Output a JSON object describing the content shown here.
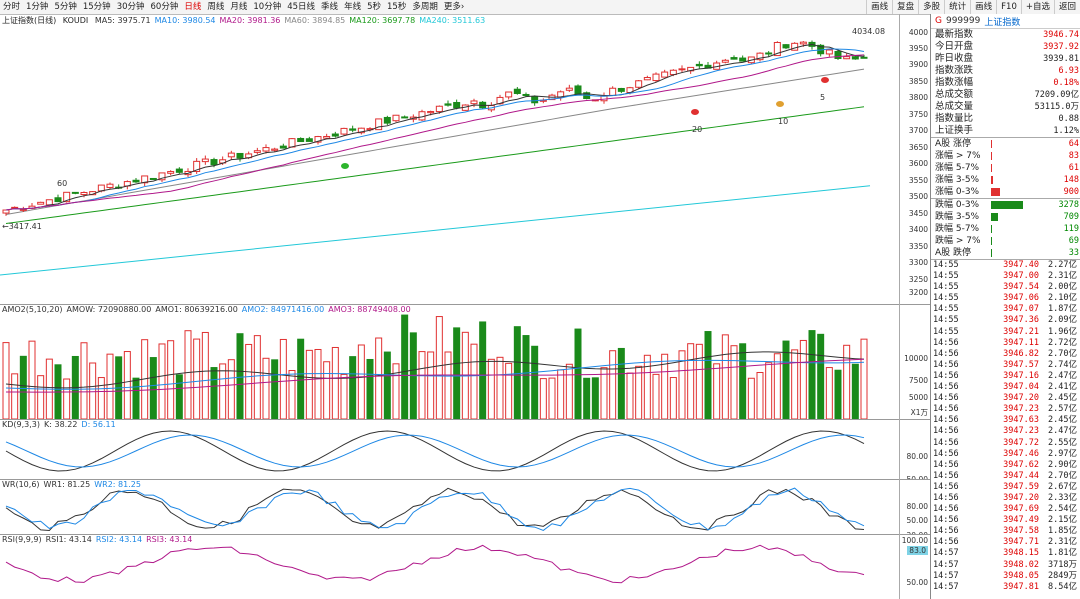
{
  "toolbar": {
    "periods": [
      "分时",
      "1分钟",
      "5分钟",
      "15分钟",
      "30分钟",
      "60分钟",
      "日线",
      "周线",
      "月线",
      "10分钟",
      "45日线",
      "季线",
      "年线",
      "5秒",
      "15秒",
      "多周期",
      "更多›"
    ],
    "active": "日线",
    "tools": [
      "画线",
      "复盘",
      "多股",
      "统计",
      "画线",
      "F10",
      "+自选",
      "返回"
    ]
  },
  "main_panel": {
    "title": "上证指数(日线)",
    "indicator": "KOUDI",
    "ma": [
      {
        "label": "MA5: 3975.71",
        "color": "#333333"
      },
      {
        "label": "MA10: 3980.54",
        "color": "#1e88e5"
      },
      {
        "label": "MA20: 3981.36",
        "color": "#b0188a"
      },
      {
        "label": "MA60: 3894.85",
        "color": "#888888"
      },
      {
        "label": "MA120: 3697.78",
        "color": "#1a9a1a"
      },
      {
        "label": "MA240: 3511.63",
        "color": "#22c8d8"
      }
    ],
    "yticks": [
      "4000",
      "3950",
      "3900",
      "3850",
      "3800",
      "3750",
      "3700",
      "3650",
      "3600",
      "3550",
      "3500",
      "3450",
      "3400",
      "3350",
      "3300",
      "3250",
      "3200"
    ],
    "high_label": "4034.08",
    "low_label": "3417.41",
    "markers": [
      "60",
      "20",
      "10",
      "5"
    ]
  },
  "amo_panel": {
    "labels": [
      {
        "text": "AMO2(5,10,20)",
        "color": "#333333"
      },
      {
        "text": "AMOW: 72090880.00",
        "color": "#333333"
      },
      {
        "text": "AMO1: 80639216.00",
        "color": "#333333"
      },
      {
        "text": "AMO2: 84971416.00",
        "color": "#1e88e5"
      },
      {
        "text": "AMO3: 88749408.00",
        "color": "#b0188a"
      }
    ],
    "yticks": [
      "10000",
      "7500",
      "5000"
    ],
    "unit": "X1万"
  },
  "kd_panel": {
    "labels": [
      {
        "text": "KD(9,3,3)",
        "color": "#333333"
      },
      {
        "text": "K: 38.22",
        "color": "#333333"
      },
      {
        "text": "D: 56.11",
        "color": "#1e88e5"
      }
    ],
    "yticks": [
      "80.00",
      "50.00"
    ]
  },
  "wr_panel": {
    "labels": [
      {
        "text": "WR(10,6)",
        "color": "#333333"
      },
      {
        "text": "WR1: 81.25",
        "color": "#333333"
      },
      {
        "text": "WR2: 81.25",
        "color": "#1e88e5"
      }
    ],
    "yticks": [
      "80.00",
      "50.00",
      "20.00"
    ]
  },
  "rsi_panel": {
    "labels": [
      {
        "text": "RSI(9,9,9)",
        "color": "#333333"
      },
      {
        "text": "RSI1: 43.14",
        "color": "#333333"
      },
      {
        "text": "RSI2: 43.14",
        "color": "#1e88e5"
      },
      {
        "text": "RSI3: 43.14",
        "color": "#b0188a"
      }
    ],
    "yticks": [
      "100.00",
      "83.0",
      "50.00"
    ]
  },
  "quote": {
    "g": "G",
    "code": "999999",
    "name": "上证指数",
    "rows": [
      {
        "label": "最新指数",
        "value": "3946.74",
        "color": "red"
      },
      {
        "label": "今日开盘",
        "value": "3937.92",
        "color": "red"
      },
      {
        "label": "昨日收盘",
        "value": "3939.81",
        "color": "blk"
      },
      {
        "label": "指数涨跌",
        "value": "6.93",
        "color": "red"
      },
      {
        "label": "指数涨幅",
        "value": "0.18%",
        "color": "red"
      },
      {
        "label": "总成交额",
        "value": "7209.09亿",
        "color": "blk"
      },
      {
        "label": "总成交量",
        "value": "53115.0万",
        "color": "blk"
      },
      {
        "label": "指数量比",
        "value": "0.88",
        "color": "blk"
      },
      {
        "label": "上证换手",
        "value": "1.12%",
        "color": "blk"
      }
    ],
    "up_dist": [
      {
        "label": "A股 涨停",
        "value": "64",
        "frac": 0.0
      },
      {
        "label": "涨幅 > 7%",
        "value": "83",
        "frac": 0.01
      },
      {
        "label": "涨幅 5-7%",
        "value": "61",
        "frac": 0.01
      },
      {
        "label": "涨幅 3-5%",
        "value": "148",
        "frac": 0.03
      },
      {
        "label": "涨幅 0-3%",
        "value": "900",
        "frac": 0.16
      }
    ],
    "down_dist": [
      {
        "label": "跌幅 0-3%",
        "value": "3278",
        "frac": 0.6
      },
      {
        "label": "跌幅 3-5%",
        "value": "709",
        "frac": 0.13
      },
      {
        "label": "跌幅 5-7%",
        "value": "119",
        "frac": 0.02
      },
      {
        "label": "跌幅 > 7%",
        "value": "69",
        "frac": 0.01
      },
      {
        "label": "A股 跌停",
        "value": "33",
        "frac": 0.0
      }
    ]
  },
  "ticks": [
    {
      "t": "14:55",
      "p": "3947.40",
      "a": "2.27亿"
    },
    {
      "t": "14:55",
      "p": "3947.00",
      "a": "2.31亿"
    },
    {
      "t": "14:55",
      "p": "3947.54",
      "a": "2.00亿"
    },
    {
      "t": "14:55",
      "p": "3947.06",
      "a": "2.10亿"
    },
    {
      "t": "14:55",
      "p": "3947.07",
      "a": "1.87亿"
    },
    {
      "t": "14:55",
      "p": "3947.36",
      "a": "2.09亿"
    },
    {
      "t": "14:55",
      "p": "3947.21",
      "a": "1.96亿"
    },
    {
      "t": "14:56",
      "p": "3947.11",
      "a": "2.72亿"
    },
    {
      "t": "14:56",
      "p": "3946.82",
      "a": "2.70亿"
    },
    {
      "t": "14:56",
      "p": "3947.57",
      "a": "2.74亿"
    },
    {
      "t": "14:56",
      "p": "3947.16",
      "a": "2.47亿"
    },
    {
      "t": "14:56",
      "p": "3947.04",
      "a": "2.41亿"
    },
    {
      "t": "14:56",
      "p": "3947.20",
      "a": "2.45亿"
    },
    {
      "t": "14:56",
      "p": "3947.23",
      "a": "2.57亿"
    },
    {
      "t": "14:56",
      "p": "3947.63",
      "a": "2.45亿"
    },
    {
      "t": "14:56",
      "p": "3947.23",
      "a": "2.47亿"
    },
    {
      "t": "14:56",
      "p": "3947.72",
      "a": "2.55亿"
    },
    {
      "t": "14:56",
      "p": "3947.46",
      "a": "2.97亿"
    },
    {
      "t": "14:56",
      "p": "3947.62",
      "a": "2.90亿"
    },
    {
      "t": "14:56",
      "p": "3947.44",
      "a": "2.70亿"
    },
    {
      "t": "14:56",
      "p": "3947.59",
      "a": "2.67亿"
    },
    {
      "t": "14:56",
      "p": "3947.20",
      "a": "2.33亿"
    },
    {
      "t": "14:56",
      "p": "3947.69",
      "a": "2.54亿"
    },
    {
      "t": "14:56",
      "p": "3947.49",
      "a": "2.15亿"
    },
    {
      "t": "14:56",
      "p": "3947.58",
      "a": "1.85亿"
    },
    {
      "t": "14:56",
      "p": "3947.71",
      "a": "2.31亿"
    },
    {
      "t": "14:57",
      "p": "3948.15",
      "a": "1.81亿"
    },
    {
      "t": "14:57",
      "p": "3948.02",
      "a": "3718万"
    },
    {
      "t": "14:57",
      "p": "3948.05",
      "a": "2849万"
    },
    {
      "t": "14:57",
      "p": "3947.81",
      "a": "8.54亿"
    }
  ]
}
